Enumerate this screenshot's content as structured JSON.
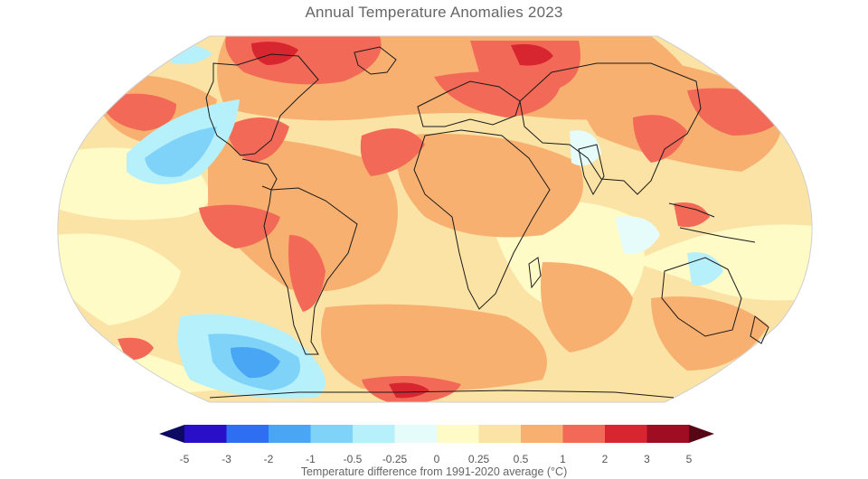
{
  "title": "Annual Temperature Anomalies 2023",
  "colorbar": {
    "label": "Temperature difference from 1991-2020 average (°C)",
    "ticks": [
      "-5",
      "-3",
      "-2",
      "-1",
      "-0.5",
      "-0.25",
      "0",
      "0.25",
      "0.5",
      "1",
      "2",
      "3",
      "5"
    ],
    "colors": [
      "#2a0fc9",
      "#2d6ef2",
      "#48a6f5",
      "#7fd3f8",
      "#b6f0fb",
      "#e6fcfb",
      "#fefbc6",
      "#fbe3a6",
      "#f8b070",
      "#f26a57",
      "#d7262f",
      "#9e0d22"
    ],
    "low_extend_color": "#0d0a63",
    "high_extend_color": "#560615"
  },
  "map": {
    "projection": "robinson",
    "ocean_base_color": "#fbe5a5",
    "land_outline_color": "#1a1a1a"
  }
}
